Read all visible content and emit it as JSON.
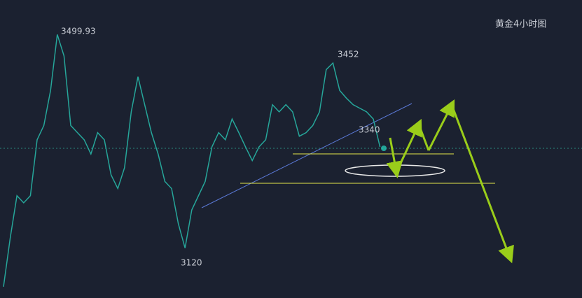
{
  "chart_data": {
    "type": "line",
    "title": "黄金4小时图",
    "values": [
      3067,
      3149,
      3220,
      3208,
      3220,
      3314,
      3338,
      3397,
      3491,
      3455,
      3338,
      3326,
      3314,
      3290,
      3326,
      3314,
      3255,
      3232,
      3267,
      3361,
      3420,
      3373,
      3326,
      3290,
      3244,
      3232,
      3173,
      3132,
      3196,
      3220,
      3244,
      3302,
      3326,
      3314,
      3349,
      3326,
      3302,
      3279,
      3302,
      3314,
      3373,
      3361,
      3373,
      3361,
      3320,
      3326,
      3338,
      3361,
      3432,
      3443,
      3397,
      3384,
      3373,
      3367,
      3361,
      3349,
      3302
    ],
    "color": "#26a69a",
    "ylim": [
      3048,
      3549
    ],
    "annotations": [
      {
        "label": "3499.93"
      },
      {
        "label": "3452"
      },
      {
        "label": "3340"
      },
      {
        "label": "3120"
      }
    ]
  }
}
